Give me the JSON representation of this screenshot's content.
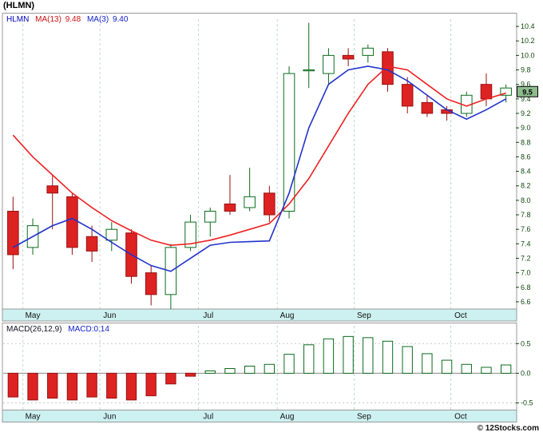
{
  "title": "(HLMN)",
  "main_chart": {
    "legend": {
      "symbol": "HLMN",
      "ma13_label": "MA(13)",
      "ma13_value": "9.48",
      "ma3_label": "MA(3)",
      "ma3_value": "9.40"
    }
  },
  "macd_chart": {
    "legend": {
      "label": "MACD(26,12,9)",
      "value": "MACD:0.14"
    }
  },
  "footer": {
    "credit": "© 12Stocks.com"
  },
  "colors": {
    "border": "#999999",
    "band": "#cdf0f0",
    "grid": "#c3d9c9",
    "axis_text": "#104a10",
    "month_text": "#111111",
    "candle_up_stroke": "#0b6b1b",
    "candle_up_fill": "#ffffff",
    "candle_down_stroke": "#991111",
    "candle_down_fill": "#dd2222",
    "badge_bg": "#8fbc8f",
    "zero_line": "#888888"
  },
  "chart_data": [
    {
      "type": "candlestick",
      "title": "HLMN price with moving averages",
      "ylim": [
        6.5,
        10.5
      ],
      "y_ticks": [
        "10.4",
        "10.2",
        "10.0",
        "9.8",
        "9.6",
        "9.4",
        "9.2",
        "9.0",
        "8.8",
        "8.6",
        "8.4",
        "8.2",
        "8.0",
        "7.8",
        "7.6",
        "7.4",
        "7.2",
        "7.0",
        "6.8",
        "6.6"
      ],
      "last_price": "9.5",
      "months": [
        {
          "label": "May",
          "i": 1.0
        },
        {
          "label": "Jun",
          "i": 4.9
        },
        {
          "label": "Jul",
          "i": 9.9
        },
        {
          "label": "Aug",
          "i": 13.9
        },
        {
          "label": "Sep",
          "i": 17.8
        },
        {
          "label": "Oct",
          "i": 22.7
        }
      ],
      "candles": [
        [
          7.85,
          8.05,
          7.05,
          7.25
        ],
        [
          7.35,
          7.75,
          7.25,
          7.65
        ],
        [
          8.2,
          8.35,
          7.6,
          8.1
        ],
        [
          8.05,
          8.1,
          7.25,
          7.35
        ],
        [
          7.5,
          7.65,
          7.15,
          7.3
        ],
        [
          7.45,
          7.7,
          7.3,
          7.6
        ],
        [
          7.55,
          7.6,
          6.85,
          6.95
        ],
        [
          7.0,
          7.1,
          6.55,
          6.7
        ],
        [
          6.7,
          7.4,
          6.5,
          7.35
        ],
        [
          7.35,
          7.8,
          7.3,
          7.7
        ],
        [
          7.7,
          7.9,
          7.5,
          7.85
        ],
        [
          7.95,
          8.35,
          7.8,
          7.85
        ],
        [
          7.9,
          8.45,
          7.85,
          8.05
        ],
        [
          8.1,
          8.2,
          7.7,
          7.8
        ],
        [
          7.85,
          9.85,
          7.75,
          9.75
        ],
        [
          9.8,
          10.45,
          9.55,
          9.8
        ],
        [
          9.75,
          10.1,
          9.6,
          10.0
        ],
        [
          10.0,
          10.1,
          9.85,
          9.95
        ],
        [
          10.0,
          10.15,
          9.9,
          10.1
        ],
        [
          10.05,
          10.1,
          9.5,
          9.6
        ],
        [
          9.6,
          9.7,
          9.2,
          9.3
        ],
        [
          9.35,
          9.45,
          9.15,
          9.2
        ],
        [
          9.25,
          9.3,
          9.1,
          9.2
        ],
        [
          9.2,
          9.5,
          9.15,
          9.45
        ],
        [
          9.6,
          9.75,
          9.3,
          9.4
        ],
        [
          9.45,
          9.6,
          9.35,
          9.55
        ]
      ],
      "series": [
        {
          "name": "MA(13)",
          "color": "#ee2222",
          "values": [
            8.9,
            8.6,
            8.35,
            8.1,
            7.9,
            7.72,
            7.58,
            7.45,
            7.38,
            7.4,
            7.45,
            7.52,
            7.6,
            7.68,
            7.95,
            8.3,
            8.75,
            9.2,
            9.6,
            9.85,
            9.8,
            9.6,
            9.4,
            9.3,
            9.4,
            9.48
          ]
        },
        {
          "name": "MA(3)",
          "color": "#2233cc",
          "values": [
            7.35,
            7.5,
            7.65,
            7.75,
            7.6,
            7.42,
            7.25,
            7.1,
            7.02,
            7.2,
            7.38,
            7.42,
            7.43,
            7.44,
            8.1,
            9.0,
            9.6,
            9.8,
            9.85,
            9.8,
            9.65,
            9.45,
            9.25,
            9.12,
            9.25,
            9.4
          ]
        }
      ]
    },
    {
      "type": "bar",
      "title": "MACD(26,12,9)",
      "current": 0.14,
      "ylim": [
        -0.6,
        0.8
      ],
      "y_ticks": [
        "0.5",
        "0.0",
        "-0.5"
      ],
      "months": [
        {
          "label": "May",
          "i": 1.0
        },
        {
          "label": "Jun",
          "i": 4.9
        },
        {
          "label": "Jul",
          "i": 9.9
        },
        {
          "label": "Aug",
          "i": 13.9
        },
        {
          "label": "Sep",
          "i": 17.8
        },
        {
          "label": "Oct",
          "i": 22.7
        }
      ],
      "values": [
        -0.4,
        -0.45,
        -0.42,
        -0.45,
        -0.4,
        -0.42,
        -0.45,
        -0.38,
        -0.18,
        -0.05,
        0.04,
        0.08,
        0.12,
        0.15,
        0.32,
        0.48,
        0.58,
        0.62,
        0.6,
        0.54,
        0.45,
        0.33,
        0.22,
        0.15,
        0.1,
        0.14
      ]
    }
  ]
}
